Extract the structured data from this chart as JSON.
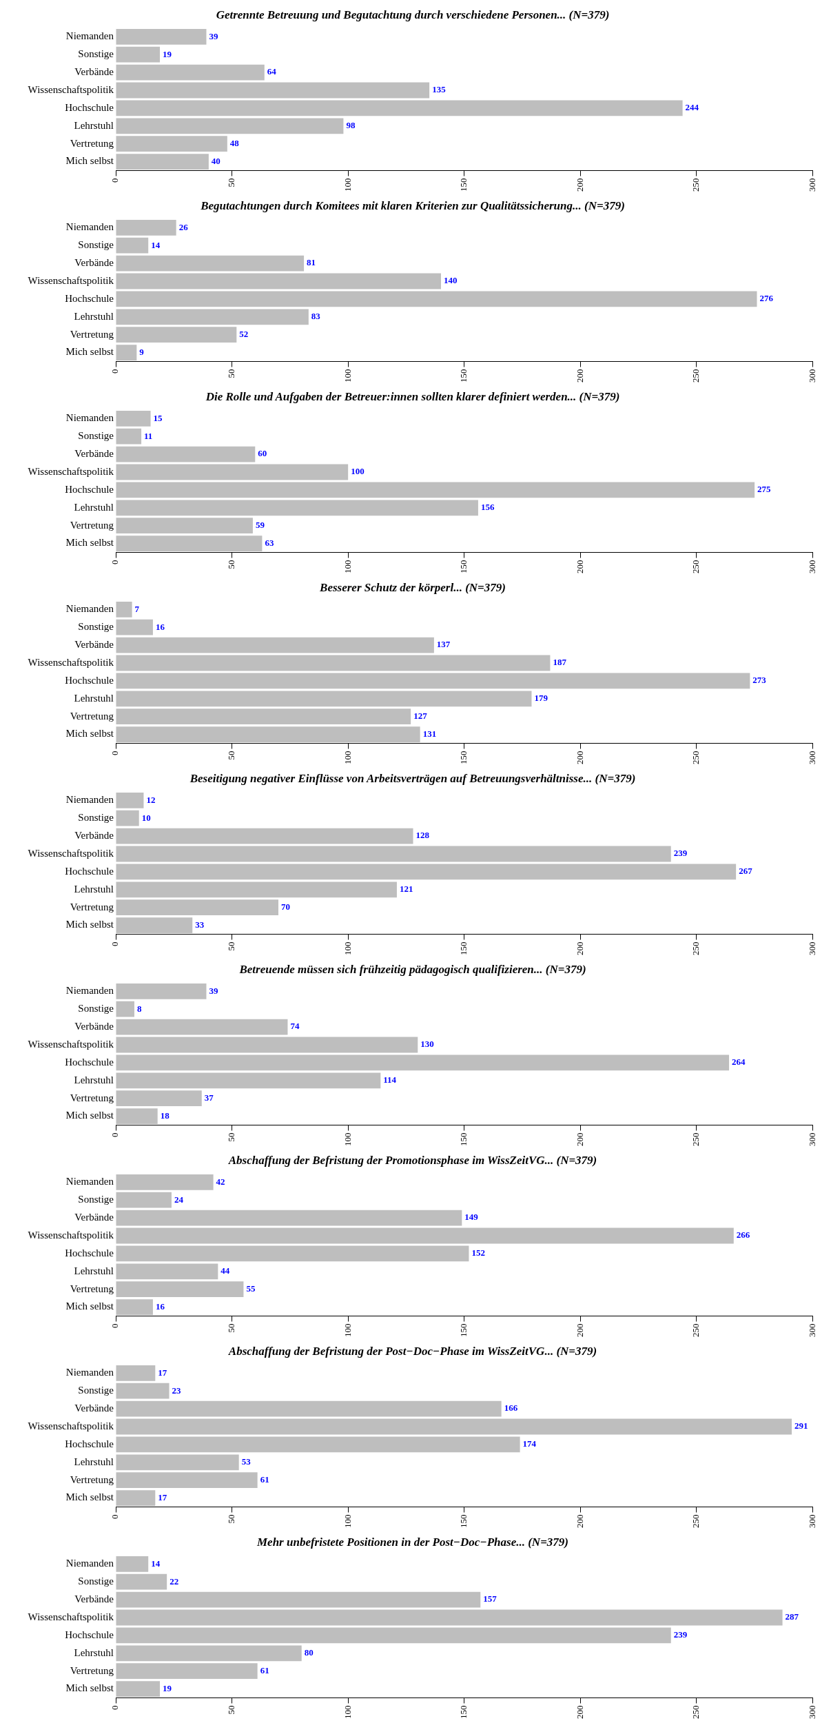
{
  "chart_data": [
    {
      "type": "bar",
      "orientation": "horizontal",
      "title": "Getrennte Betreuung und Begutachtung durch verschiedene Personen... (N=379)",
      "categories": [
        "Niemanden",
        "Sonstige",
        "Verbände",
        "Wissenschaftspolitik",
        "Hochschule",
        "Lehrstuhl",
        "Vertretung",
        "Mich selbst"
      ],
      "values": [
        39,
        19,
        64,
        135,
        244,
        98,
        48,
        40
      ],
      "color": "#bebebe",
      "data_labels": true,
      "xlim": [
        0,
        300
      ],
      "xticks": [
        0,
        50,
        100,
        150,
        200,
        250,
        300
      ],
      "grid": false,
      "legend": false
    },
    {
      "type": "bar",
      "orientation": "horizontal",
      "title": "Begutachtungen durch Komitees mit klaren Kriterien zur Qualitätssicherung... (N=379)",
      "categories": [
        "Niemanden",
        "Sonstige",
        "Verbände",
        "Wissenschaftspolitik",
        "Hochschule",
        "Lehrstuhl",
        "Vertretung",
        "Mich selbst"
      ],
      "values": [
        26,
        14,
        81,
        140,
        276,
        83,
        52,
        9
      ],
      "color": "#bebebe",
      "data_labels": true,
      "xlim": [
        0,
        300
      ],
      "xticks": [
        0,
        50,
        100,
        150,
        200,
        250,
        300
      ],
      "grid": false,
      "legend": false
    },
    {
      "type": "bar",
      "orientation": "horizontal",
      "title": "Die Rolle und Aufgaben der Betreuer:innen sollten klarer definiert werden... (N=379)",
      "categories": [
        "Niemanden",
        "Sonstige",
        "Verbände",
        "Wissenschaftspolitik",
        "Hochschule",
        "Lehrstuhl",
        "Vertretung",
        "Mich selbst"
      ],
      "values": [
        15,
        11,
        60,
        100,
        275,
        156,
        59,
        63
      ],
      "color": "#bebebe",
      "data_labels": true,
      "xlim": [
        0,
        300
      ],
      "xticks": [
        0,
        50,
        100,
        150,
        200,
        250,
        300
      ],
      "grid": false,
      "legend": false
    },
    {
      "type": "bar",
      "orientation": "horizontal",
      "title": "Besserer Schutz der körperl... (N=379)",
      "categories": [
        "Niemanden",
        "Sonstige",
        "Verbände",
        "Wissenschaftspolitik",
        "Hochschule",
        "Lehrstuhl",
        "Vertretung",
        "Mich selbst"
      ],
      "values": [
        7,
        16,
        137,
        187,
        273,
        179,
        127,
        131
      ],
      "color": "#bebebe",
      "data_labels": true,
      "xlim": [
        0,
        300
      ],
      "xticks": [
        0,
        50,
        100,
        150,
        200,
        250,
        300
      ],
      "grid": false,
      "legend": false
    },
    {
      "type": "bar",
      "orientation": "horizontal",
      "title": "Beseitigung negativer Einflüsse von Arbeitsverträgen auf Betreuungsverhältnisse... (N=379)",
      "categories": [
        "Niemanden",
        "Sonstige",
        "Verbände",
        "Wissenschaftspolitik",
        "Hochschule",
        "Lehrstuhl",
        "Vertretung",
        "Mich selbst"
      ],
      "values": [
        12,
        10,
        128,
        239,
        267,
        121,
        70,
        33
      ],
      "color": "#bebebe",
      "data_labels": true,
      "xlim": [
        0,
        300
      ],
      "xticks": [
        0,
        50,
        100,
        150,
        200,
        250,
        300
      ],
      "grid": false,
      "legend": false
    },
    {
      "type": "bar",
      "orientation": "horizontal",
      "title": "Betreuende müssen sich frühzeitig pädagogisch qualifizieren... (N=379)",
      "categories": [
        "Niemanden",
        "Sonstige",
        "Verbände",
        "Wissenschaftspolitik",
        "Hochschule",
        "Lehrstuhl",
        "Vertretung",
        "Mich selbst"
      ],
      "values": [
        39,
        8,
        74,
        130,
        264,
        114,
        37,
        18
      ],
      "color": "#bebebe",
      "data_labels": true,
      "xlim": [
        0,
        300
      ],
      "xticks": [
        0,
        50,
        100,
        150,
        200,
        250,
        300
      ],
      "grid": false,
      "legend": false
    },
    {
      "type": "bar",
      "orientation": "horizontal",
      "title": "Abschaffung der Befristung der Promotionsphase im WissZeitVG... (N=379)",
      "categories": [
        "Niemanden",
        "Sonstige",
        "Verbände",
        "Wissenschaftspolitik",
        "Hochschule",
        "Lehrstuhl",
        "Vertretung",
        "Mich selbst"
      ],
      "values": [
        42,
        24,
        149,
        266,
        152,
        44,
        55,
        16
      ],
      "color": "#bebebe",
      "data_labels": true,
      "xlim": [
        0,
        300
      ],
      "xticks": [
        0,
        50,
        100,
        150,
        200,
        250,
        300
      ],
      "grid": false,
      "legend": false
    },
    {
      "type": "bar",
      "orientation": "horizontal",
      "title": "Abschaffung der Befristung der Post−Doc−Phase im WissZeitVG... (N=379)",
      "categories": [
        "Niemanden",
        "Sonstige",
        "Verbände",
        "Wissenschaftspolitik",
        "Hochschule",
        "Lehrstuhl",
        "Vertretung",
        "Mich selbst"
      ],
      "values": [
        17,
        23,
        166,
        291,
        174,
        53,
        61,
        17
      ],
      "color": "#bebebe",
      "data_labels": true,
      "xlim": [
        0,
        300
      ],
      "xticks": [
        0,
        50,
        100,
        150,
        200,
        250,
        300
      ],
      "grid": false,
      "legend": false
    },
    {
      "type": "bar",
      "orientation": "horizontal",
      "title": "Mehr unbefristete Positionen in der Post−Doc−Phase... (N=379)",
      "categories": [
        "Niemanden",
        "Sonstige",
        "Verbände",
        "Wissenschaftspolitik",
        "Hochschule",
        "Lehrstuhl",
        "Vertretung",
        "Mich selbst"
      ],
      "values": [
        14,
        22,
        157,
        287,
        239,
        80,
        61,
        19
      ],
      "color": "#bebebe",
      "data_labels": true,
      "xlim": [
        0,
        300
      ],
      "xticks": [
        0,
        50,
        100,
        150,
        200,
        250,
        300
      ],
      "grid": false,
      "legend": false
    }
  ]
}
